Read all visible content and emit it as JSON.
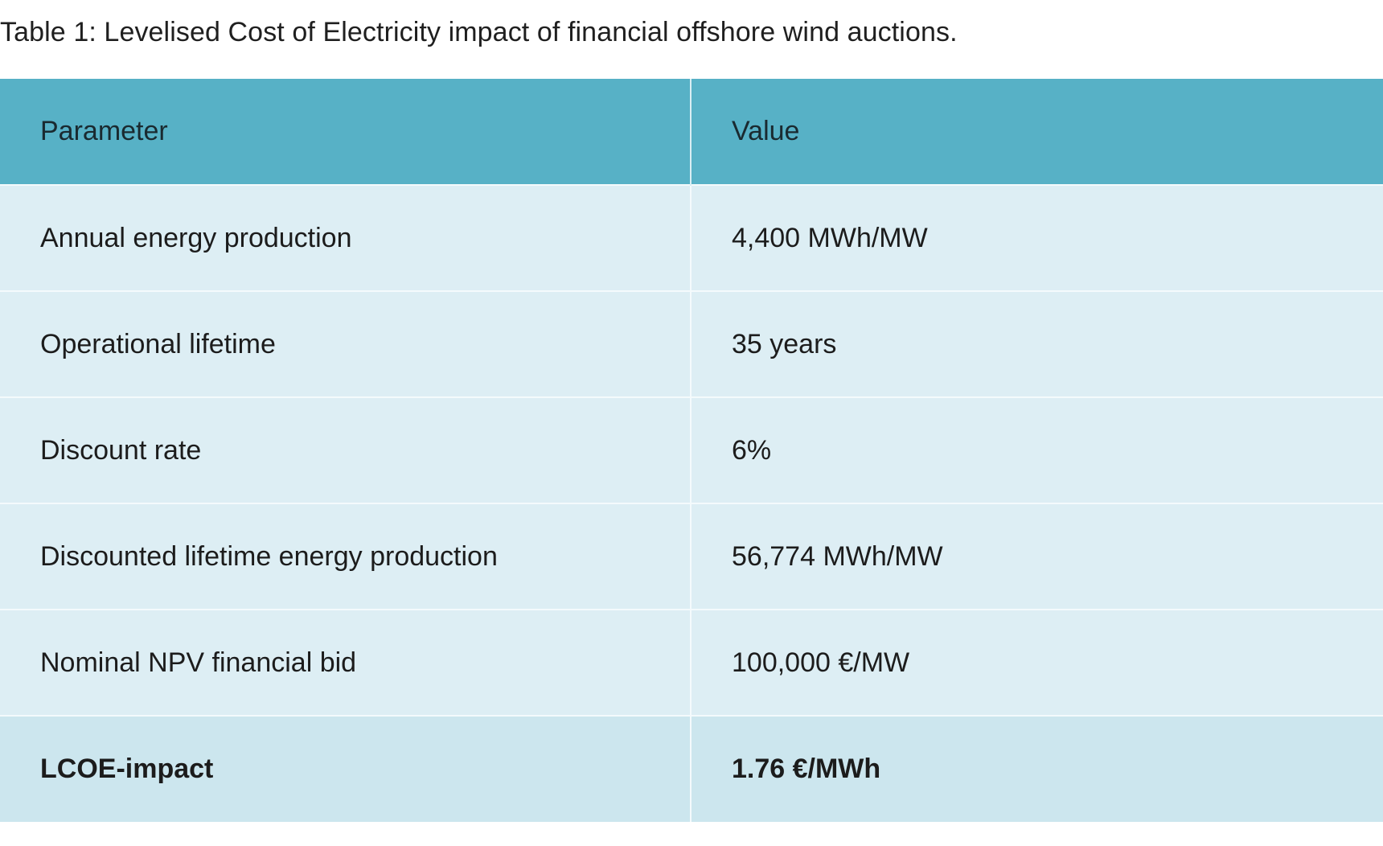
{
  "caption": "Table 1: Levelised Cost of Electricity impact of financial offshore wind auctions.",
  "table": {
    "headers": [
      "Parameter",
      "Value"
    ],
    "rows": [
      [
        "Annual energy production",
        "4,400 MWh/MW"
      ],
      [
        "Operational lifetime",
        "35 years"
      ],
      [
        "Discount rate",
        "6%"
      ],
      [
        "Discounted lifetime energy production",
        "56,774 MWh/MW"
      ],
      [
        "Nominal NPV financial bid",
        "100,000 €/MW"
      ],
      [
        "LCOE-impact",
        "1.76 €/MWh"
      ]
    ]
  },
  "colors": {
    "header_bg": "#57b1c6",
    "row_bg": "#ddeef4",
    "total_row_bg": "#cce6ee"
  }
}
